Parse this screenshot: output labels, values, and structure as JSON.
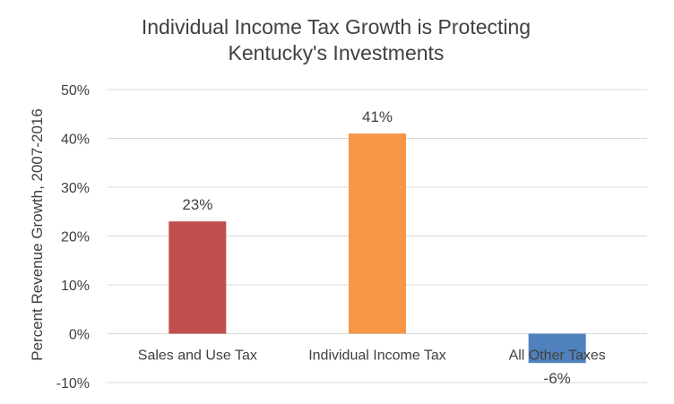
{
  "chart_data": {
    "type": "bar",
    "title": [
      "Individual Income Tax Growth is Protecting",
      "Kentucky's Investments"
    ],
    "xlabel": "",
    "ylabel": "Percent Revenue Growth, 2007-2016",
    "ylim": [
      -10,
      50
    ],
    "yticks": [
      50,
      40,
      30,
      20,
      10,
      0,
      -10
    ],
    "ytick_labels": [
      "50%",
      "40%",
      "30%",
      "20%",
      "10%",
      "0%",
      "-10%"
    ],
    "grid": true,
    "legend": "none",
    "categories": [
      "Sales and Use Tax",
      "Individual Income Tax",
      "All Other Taxes"
    ],
    "values": [
      23,
      41,
      -6
    ],
    "data_labels": [
      "23%",
      "41%",
      "-6%"
    ],
    "colors": [
      "#c0504d",
      "#f79646",
      "#4f81bd"
    ]
  }
}
